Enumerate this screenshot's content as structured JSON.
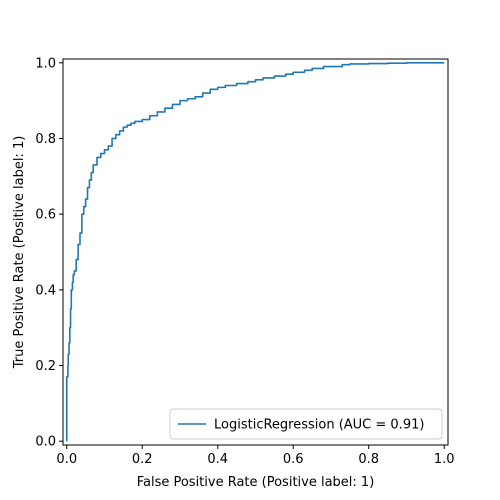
{
  "chart_data": {
    "type": "line",
    "title": "",
    "xlabel": "False Positive Rate (Positive label: 1)",
    "ylabel": "True Positive Rate (Positive label: 1)",
    "xlim": [
      -0.01,
      1.01
    ],
    "ylim": [
      -0.01,
      1.01
    ],
    "xticks": [
      "0.0",
      "0.2",
      "0.4",
      "0.6",
      "0.8",
      "1.0"
    ],
    "yticks": [
      "0.0",
      "0.2",
      "0.4",
      "0.6",
      "0.8",
      "1.0"
    ],
    "grid": false,
    "legend_position": "lower-right",
    "series": [
      {
        "name": "LogisticRegression (AUC = 0.91)",
        "color": "#1f77b4",
        "x": [
          0.0,
          0.0,
          0.003,
          0.004,
          0.006,
          0.008,
          0.01,
          0.012,
          0.015,
          0.017,
          0.02,
          0.025,
          0.03,
          0.035,
          0.04,
          0.045,
          0.05,
          0.055,
          0.06,
          0.065,
          0.07,
          0.08,
          0.09,
          0.1,
          0.11,
          0.12,
          0.13,
          0.14,
          0.15,
          0.16,
          0.17,
          0.18,
          0.2,
          0.22,
          0.24,
          0.26,
          0.28,
          0.3,
          0.32,
          0.34,
          0.36,
          0.38,
          0.4,
          0.42,
          0.45,
          0.48,
          0.5,
          0.52,
          0.55,
          0.58,
          0.6,
          0.63,
          0.65,
          0.68,
          0.7,
          0.73,
          0.75,
          0.8,
          0.85,
          0.9,
          1.0
        ],
        "y": [
          0.0,
          0.17,
          0.2,
          0.23,
          0.26,
          0.3,
          0.35,
          0.4,
          0.42,
          0.44,
          0.45,
          0.48,
          0.52,
          0.55,
          0.6,
          0.62,
          0.64,
          0.67,
          0.69,
          0.71,
          0.73,
          0.75,
          0.76,
          0.77,
          0.78,
          0.8,
          0.81,
          0.82,
          0.83,
          0.835,
          0.84,
          0.845,
          0.85,
          0.86,
          0.87,
          0.88,
          0.89,
          0.9,
          0.905,
          0.91,
          0.92,
          0.93,
          0.935,
          0.94,
          0.945,
          0.95,
          0.955,
          0.96,
          0.965,
          0.97,
          0.975,
          0.98,
          0.985,
          0.99,
          0.99,
          0.995,
          0.997,
          0.998,
          0.999,
          1.0,
          1.0
        ]
      }
    ]
  }
}
